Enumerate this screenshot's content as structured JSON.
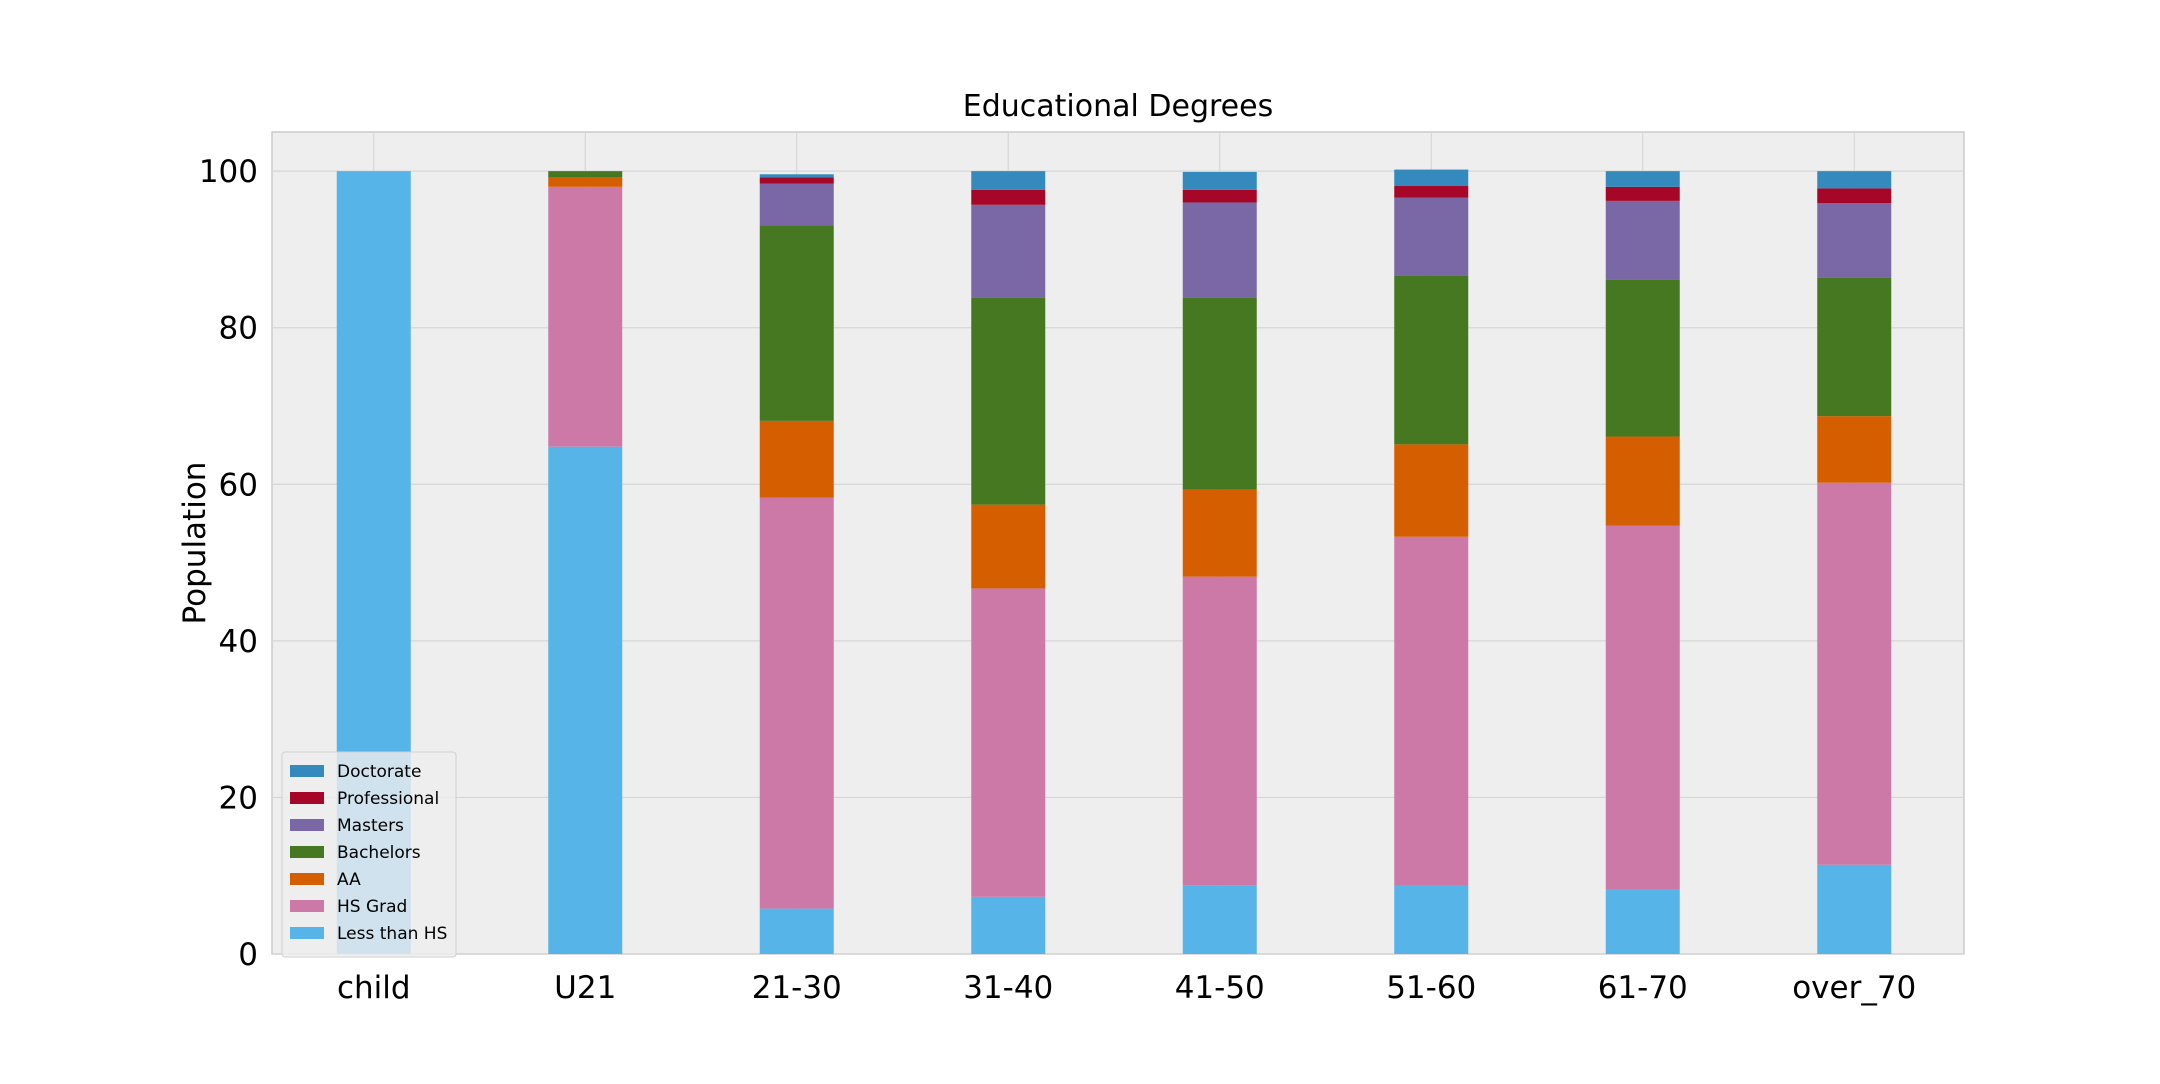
{
  "chart_data": {
    "type": "bar",
    "stacked": true,
    "title": "Educational Degrees",
    "xlabel": "",
    "ylabel": "Population",
    "ylim": [
      0,
      105
    ],
    "yticks": [
      0,
      20,
      40,
      60,
      80,
      100
    ],
    "grid": true,
    "legend_position": "lower-left",
    "categories": [
      "child",
      "U21",
      "21-30",
      "31-40",
      "41-50",
      "51-60",
      "61-70",
      "over_70"
    ],
    "series": [
      {
        "name": "Less than HS",
        "color": "#56b4e9",
        "values": [
          100,
          64.8,
          5.8,
          7.3,
          8.8,
          8.7,
          8.3,
          11.4
        ]
      },
      {
        "name": "HS Grad",
        "color": "#cc79a7",
        "values": [
          0,
          33.2,
          52.5,
          39.4,
          39.4,
          44.6,
          46.4,
          48.8
        ]
      },
      {
        "name": "AA",
        "color": "#d55e00",
        "values": [
          0,
          1.2,
          9.8,
          10.7,
          11.1,
          11.8,
          11.4,
          8.5
        ]
      },
      {
        "name": "Bachelors",
        "color": "#467821",
        "values": [
          0,
          0.8,
          25.0,
          26.4,
          24.5,
          21.6,
          20.0,
          17.7
        ]
      },
      {
        "name": "Masters",
        "color": "#7a68a6",
        "values": [
          0,
          0,
          5.3,
          11.9,
          12.2,
          9.9,
          10.1,
          9.5
        ]
      },
      {
        "name": "Professional",
        "color": "#a60628",
        "values": [
          0,
          0,
          0.8,
          1.9,
          1.6,
          1.5,
          1.8,
          1.9
        ]
      },
      {
        "name": "Doctorate",
        "color": "#348abd",
        "values": [
          0,
          0,
          0.4,
          2.4,
          2.3,
          2.1,
          2.0,
          2.2
        ]
      }
    ],
    "legend_order": [
      "Doctorate",
      "Professional",
      "Masters",
      "Bachelors",
      "AA",
      "HS Grad",
      "Less than HS"
    ],
    "plot_background": "#eeeeee",
    "grid_color": "#d6d6d6"
  }
}
